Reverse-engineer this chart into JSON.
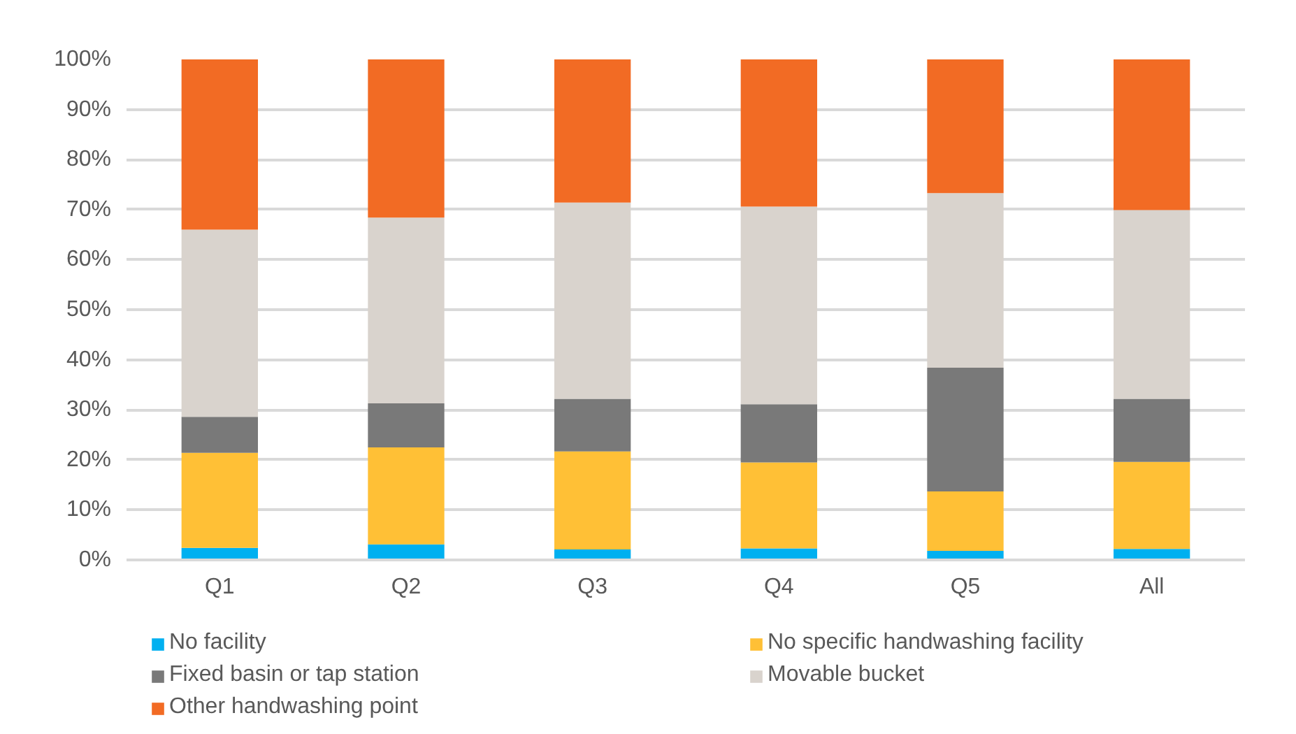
{
  "chart_data": {
    "type": "bar",
    "stacked": true,
    "categories": [
      "Q1",
      "Q2",
      "Q3",
      "Q4",
      "Q5",
      "All"
    ],
    "series": [
      {
        "name": "No facility",
        "color": "#00b0f0",
        "values": [
          2.4,
          3.1,
          2.1,
          2.3,
          1.8,
          2.2
        ]
      },
      {
        "name": "No specific handwashing facility",
        "color": "#ffc036",
        "values": [
          19.0,
          19.4,
          19.6,
          17.2,
          11.9,
          17.4
        ]
      },
      {
        "name": "Fixed basin or tap station",
        "color": "#797979",
        "values": [
          7.2,
          8.8,
          10.5,
          11.6,
          24.7,
          12.6
        ]
      },
      {
        "name": "Movable bucket",
        "color": "#d9d3cd",
        "values": [
          37.4,
          37.1,
          39.2,
          39.5,
          34.9,
          37.7
        ]
      },
      {
        "name": "Other handwashing point",
        "color": "#f26b24",
        "values": [
          34.0,
          31.6,
          28.6,
          29.4,
          26.7,
          30.1
        ]
      }
    ],
    "ylim": [
      0,
      100
    ],
    "yticks": [
      {
        "value": 0,
        "label": "0%"
      },
      {
        "value": 10,
        "label": "10%"
      },
      {
        "value": 20,
        "label": "20%"
      },
      {
        "value": 30,
        "label": "30%"
      },
      {
        "value": 40,
        "label": "40%"
      },
      {
        "value": 50,
        "label": "50%"
      },
      {
        "value": 60,
        "label": "60%"
      },
      {
        "value": 70,
        "label": "70%"
      },
      {
        "value": 80,
        "label": "80%"
      },
      {
        "value": 90,
        "label": "90%"
      },
      {
        "value": 100,
        "label": "100%"
      }
    ],
    "grid": "y",
    "legend": "bottom"
  }
}
